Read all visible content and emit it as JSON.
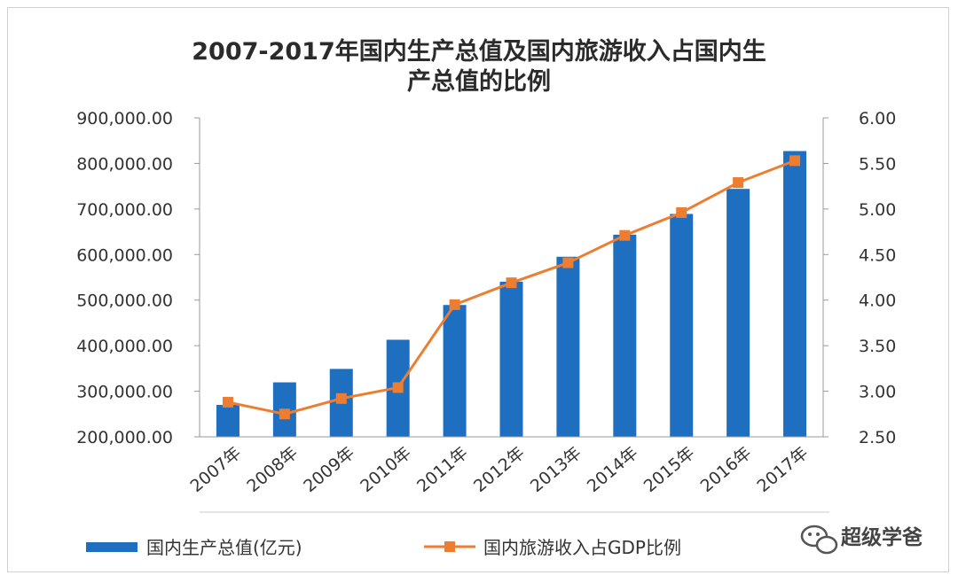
{
  "chart_data": {
    "type": "bar+line",
    "title": "2007-2017年国内生产总值及国内旅游收入占国内生产总值的比例",
    "title_lines": [
      "2007-2017年国内生产总值及国内旅游收入占国内生",
      "产总值的比例"
    ],
    "categories": [
      "2007年",
      "2008年",
      "2009年",
      "2010年",
      "2011年",
      "2012年",
      "2013年",
      "2014年",
      "2015年",
      "2016年",
      "2017年"
    ],
    "series": [
      {
        "name": "国内生产总值(亿元)",
        "type": "bar",
        "axis": "left",
        "color": "#1f6fc1",
        "values": [
          270000,
          319500,
          349000,
          413000,
          489300,
          540400,
          595200,
          643600,
          689100,
          744100,
          827100
        ]
      },
      {
        "name": "国内旅游收入占GDP比例",
        "type": "line",
        "axis": "right",
        "color": "#ed7d31",
        "values": [
          2.88,
          2.75,
          2.92,
          3.04,
          3.95,
          4.19,
          4.41,
          4.71,
          4.96,
          5.29,
          5.53
        ]
      }
    ],
    "y_left": {
      "min": 200000,
      "max": 900000,
      "ticks": [
        "200,000.00",
        "300,000.00",
        "400,000.00",
        "500,000.00",
        "600,000.00",
        "700,000.00",
        "800,000.00",
        "900,000.00"
      ]
    },
    "y_right": {
      "min": 2.5,
      "max": 6.0,
      "ticks": [
        "2.50",
        "3.00",
        "3.50",
        "4.00",
        "4.50",
        "5.00",
        "5.50",
        "6.00"
      ]
    },
    "legend_position": "bottom"
  },
  "legend": {
    "bar_label": "国内生产总值(亿元)",
    "line_label": "国内旅游收入占GDP比例"
  },
  "watermark": {
    "text": "超级学爸",
    "icon": "wechat-icon"
  }
}
